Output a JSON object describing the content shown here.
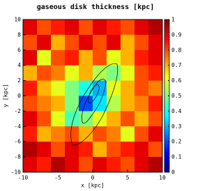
{
  "chart_data": {
    "type": "heatmap",
    "title": "gaseous disk thickness [kpc]",
    "x_label": "x [kpc]",
    "y_label": "y [kpc]",
    "x": [
      -9,
      -7,
      -5,
      -3,
      -1,
      1,
      3,
      5,
      7,
      9
    ],
    "y": [
      9,
      7,
      5,
      3,
      1,
      -1,
      -3,
      -5,
      -7,
      -9
    ],
    "z": [
      [
        0.9,
        0.8,
        0.85,
        0.9,
        0.8,
        0.9,
        0.85,
        0.8,
        0.9,
        0.95
      ],
      [
        0.8,
        0.9,
        0.7,
        0.8,
        0.9,
        0.8,
        0.9,
        0.7,
        0.8,
        0.9
      ],
      [
        0.9,
        0.6,
        0.8,
        0.85,
        0.7,
        0.8,
        0.6,
        0.7,
        0.85,
        0.9
      ],
      [
        0.7,
        0.8,
        0.75,
        0.6,
        0.7,
        0.55,
        0.5,
        0.6,
        0.8,
        0.85
      ],
      [
        0.85,
        0.7,
        0.6,
        0.5,
        0.4,
        0.3,
        0.6,
        0.7,
        0.8,
        0.75
      ],
      [
        0.8,
        0.75,
        0.7,
        0.5,
        0.2,
        0.35,
        0.55,
        0.7,
        0.75,
        0.85
      ],
      [
        0.9,
        0.8,
        0.6,
        0.45,
        0.5,
        0.6,
        0.7,
        0.8,
        0.7,
        0.8
      ],
      [
        0.85,
        0.7,
        0.75,
        0.8,
        0.7,
        0.8,
        0.75,
        0.6,
        0.8,
        0.9
      ],
      [
        0.95,
        0.9,
        0.8,
        0.9,
        0.85,
        0.7,
        0.8,
        0.85,
        0.9,
        0.8
      ],
      [
        0.9,
        0.85,
        0.95,
        0.9,
        0.8,
        0.9,
        0.85,
        0.8,
        0.9,
        0.95
      ]
    ],
    "xlim": [
      -10,
      10
    ],
    "xticks": [
      -10,
      -5,
      0,
      5,
      10
    ],
    "ylim": [
      -10,
      10
    ],
    "yticks": [
      -10,
      -8,
      -6,
      -4,
      -2,
      0,
      2,
      4,
      6,
      8,
      10
    ],
    "zlim": [
      0,
      1
    ],
    "zticks": [
      0,
      0.1,
      0.2,
      0.3,
      0.4,
      0.5,
      0.6,
      0.7,
      0.8,
      0.9,
      1
    ],
    "colors": [
      "#00007f",
      "#0000ff",
      "#0080ff",
      "#00ffff",
      "#80ff80",
      "#ffff00",
      "#ff8000",
      "#ff0000",
      "#7f0000"
    ]
  }
}
